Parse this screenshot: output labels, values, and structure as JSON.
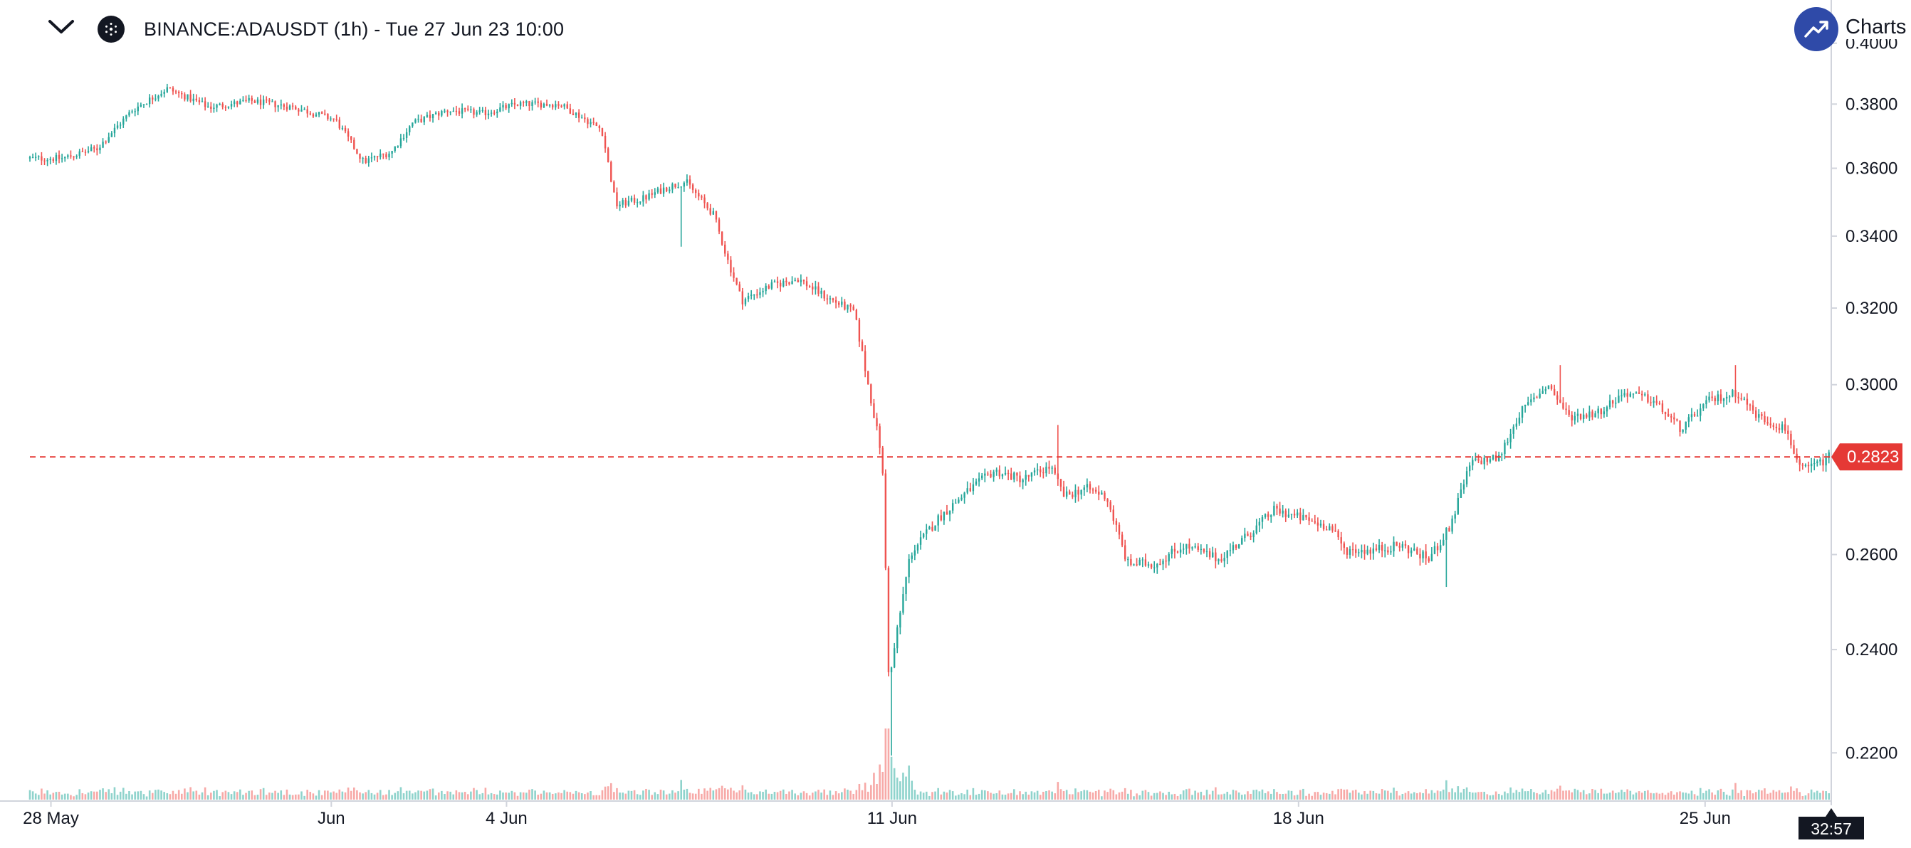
{
  "header": {
    "title": "BINANCE:ADAUSDT (1h) - Tue 27 Jun 23 10:00",
    "collapse_icon": "chevron-down-icon",
    "symbol_icon": "cardano-logo-icon"
  },
  "brand": {
    "text": "Charts b",
    "icon": "trend-up-icon",
    "color": "#2f4aa8"
  },
  "colors": {
    "up": "#26a69a",
    "down": "#ef5350",
    "up_volume": "#8fd3cc",
    "down_volume": "#f7a9a7",
    "price_line": "#e53935",
    "axis": "#d1d4dc",
    "countdown_bg": "#131722"
  },
  "chart_data": {
    "type": "candlestick",
    "symbol": "BINANCE:ADAUSDT",
    "interval": "1h",
    "ylim": [
      0.2115,
      0.405
    ],
    "y_ticks": [
      "0.4000",
      "0.3800",
      "0.3600",
      "0.3400",
      "0.3200",
      "0.3000",
      "0.2600",
      "0.2400",
      "0.2200"
    ],
    "x_ticks": [
      {
        "label": "28 May",
        "day": 0.3
      },
      {
        "label": "Jun",
        "day": 4.3
      },
      {
        "label": "4 Jun",
        "day": 6.8
      },
      {
        "label": "11 Jun",
        "day": 12.3
      },
      {
        "label": "18 Jun",
        "day": 18.1
      },
      {
        "label": "25 Jun",
        "day": 23.9
      }
    ],
    "x_range_days": [
      0,
      25.7
    ],
    "current_price": "0.2823",
    "countdown": "32:57",
    "price_path": [
      [
        0.0,
        0.363
      ],
      [
        0.5,
        0.363
      ],
      [
        1.0,
        0.366
      ],
      [
        1.5,
        0.378
      ],
      [
        2.0,
        0.385
      ],
      [
        2.6,
        0.379
      ],
      [
        3.2,
        0.381
      ],
      [
        3.8,
        0.379
      ],
      [
        4.4,
        0.375
      ],
      [
        4.8,
        0.362
      ],
      [
        5.2,
        0.365
      ],
      [
        5.5,
        0.374
      ],
      [
        6.0,
        0.378
      ],
      [
        6.5,
        0.377
      ],
      [
        7.0,
        0.38
      ],
      [
        7.6,
        0.38
      ],
      [
        8.2,
        0.372
      ],
      [
        8.4,
        0.349
      ],
      [
        8.8,
        0.351
      ],
      [
        9.1,
        0.354
      ],
      [
        9.4,
        0.356
      ],
      [
        9.8,
        0.346
      ],
      [
        10.0,
        0.333
      ],
      [
        10.2,
        0.322
      ],
      [
        10.6,
        0.326
      ],
      [
        11.0,
        0.328
      ],
      [
        11.4,
        0.323
      ],
      [
        11.8,
        0.319
      ],
      [
        12.0,
        0.3
      ],
      [
        12.2,
        0.282
      ],
      [
        12.3,
        0.232
      ],
      [
        12.35,
        0.238
      ],
      [
        12.6,
        0.26
      ],
      [
        13.0,
        0.268
      ],
      [
        13.4,
        0.274
      ],
      [
        13.8,
        0.279
      ],
      [
        14.2,
        0.277
      ],
      [
        14.6,
        0.28
      ],
      [
        14.8,
        0.273
      ],
      [
        15.1,
        0.275
      ],
      [
        15.4,
        0.273
      ],
      [
        15.7,
        0.258
      ],
      [
        16.1,
        0.258
      ],
      [
        16.5,
        0.262
      ],
      [
        17.0,
        0.259
      ],
      [
        17.4,
        0.264
      ],
      [
        17.8,
        0.27
      ],
      [
        18.2,
        0.268
      ],
      [
        18.6,
        0.266
      ],
      [
        18.8,
        0.261
      ],
      [
        19.2,
        0.261
      ],
      [
        19.6,
        0.262
      ],
      [
        20.0,
        0.259
      ],
      [
        20.3,
        0.266
      ],
      [
        20.6,
        0.281
      ],
      [
        21.0,
        0.282
      ],
      [
        21.3,
        0.293
      ],
      [
        21.7,
        0.3
      ],
      [
        22.0,
        0.292
      ],
      [
        22.4,
        0.293
      ],
      [
        22.8,
        0.298
      ],
      [
        23.2,
        0.296
      ],
      [
        23.6,
        0.289
      ],
      [
        24.0,
        0.296
      ],
      [
        24.4,
        0.298
      ],
      [
        24.7,
        0.292
      ],
      [
        25.1,
        0.289
      ],
      [
        25.3,
        0.279
      ],
      [
        25.6,
        0.281
      ],
      [
        25.7,
        0.2823
      ]
    ],
    "spikes": [
      {
        "day": 12.28,
        "low": 0.2195
      },
      {
        "day": 14.65,
        "high": 0.29
      },
      {
        "day": 24.35,
        "high": 0.305
      },
      {
        "day": 21.85,
        "high": 0.305
      },
      {
        "day": 9.3,
        "low": 0.337
      },
      {
        "day": 20.2,
        "low": 0.253
      }
    ]
  }
}
